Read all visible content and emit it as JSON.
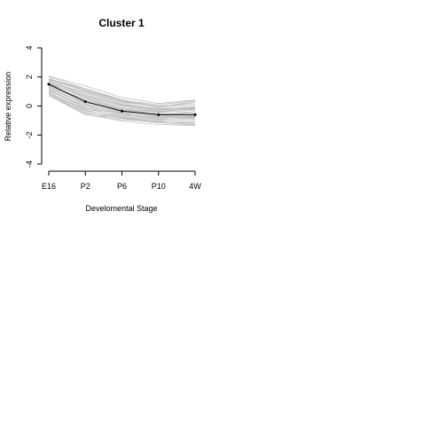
{
  "chart_data": {
    "type": "line",
    "title": "Cluster 1",
    "xlabel": "Develomental Stage",
    "ylabel": "Relative expression",
    "categories": [
      "E16",
      "P2",
      "P6",
      "P10",
      "4W"
    ],
    "ylim": [
      -4,
      4
    ],
    "yticks": [
      "-4",
      "-2",
      "0",
      "2",
      "4"
    ],
    "series": [
      {
        "values": [
          1.5,
          0.3,
          -0.35,
          -0.6,
          -0.6
        ]
      }
    ],
    "band": {
      "upper": [
        2.0,
        1.3,
        0.5,
        0.1,
        0.35
      ],
      "lower": [
        0.7,
        -0.6,
        -1.0,
        -1.2,
        -1.3
      ]
    },
    "colors": {
      "mean": "#000000",
      "band": "#b9b9b9"
    }
  }
}
